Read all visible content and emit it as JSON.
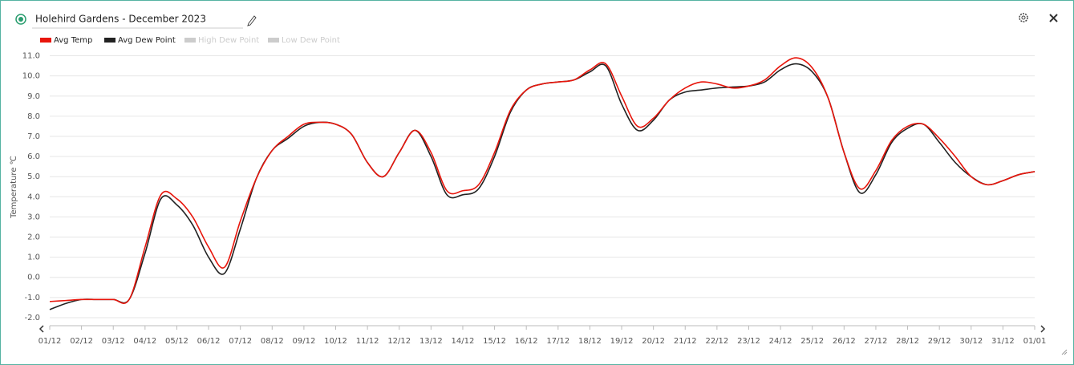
{
  "chart_data": {
    "type": "line",
    "title": "Holehird Gardens - December 2023",
    "y_label": "Temperature ℃",
    "categories": [
      "01/12",
      null,
      "02/12",
      null,
      "03/12",
      null,
      "04/12",
      null,
      "05/12",
      null,
      "06/12",
      null,
      "07/12",
      null,
      "08/12",
      null,
      "09/12",
      null,
      "10/12",
      null,
      "11/12",
      null,
      "12/12",
      null,
      "13/12",
      null,
      "14/12",
      null,
      "15/12",
      null,
      "16/12",
      null,
      "17/12",
      null,
      "18/12",
      null,
      "19/12",
      null,
      "20/12",
      null,
      "21/12",
      null,
      "22/12",
      null,
      "23/12",
      null,
      "24/12",
      null,
      "25/12",
      null,
      "26/12",
      null,
      "27/12",
      null,
      "28/12",
      null,
      "29/12",
      null,
      "30/12",
      null,
      "31/12",
      null,
      "01/01"
    ],
    "series": [
      {
        "name": "Avg Temp",
        "color": "#e8160c",
        "visible": true,
        "values": [
          -1.2,
          -1.15,
          -1.1,
          -1.1,
          -1.1,
          -1.1,
          1.5,
          4.1,
          3.9,
          3.0,
          1.5,
          0.5,
          2.8,
          4.9,
          6.3,
          7.0,
          7.6,
          7.7,
          7.6,
          7.1,
          5.7,
          5.0,
          6.2,
          7.3,
          6.2,
          4.3,
          4.3,
          4.6,
          6.2,
          8.3,
          9.3,
          9.6,
          9.7,
          9.8,
          10.3,
          10.6,
          9.0,
          7.5,
          7.9,
          8.8,
          9.4,
          9.7,
          9.6,
          9.4,
          9.5,
          9.8,
          10.5,
          10.9,
          10.4,
          8.9,
          6.2,
          4.4,
          5.3,
          6.8,
          7.5,
          7.6,
          6.9,
          6.0,
          5.0,
          4.6,
          4.8,
          5.1,
          5.25
        ]
      },
      {
        "name": "Avg Dew Point",
        "color": "#222222",
        "visible": true,
        "values": [
          -1.6,
          -1.3,
          -1.1,
          -1.1,
          -1.1,
          -1.1,
          1.2,
          3.9,
          3.6,
          2.6,
          1.0,
          0.2,
          2.4,
          4.9,
          6.3,
          6.9,
          7.5,
          7.7,
          7.6,
          7.1,
          5.7,
          5.0,
          6.2,
          7.3,
          6.0,
          4.1,
          4.1,
          4.4,
          6.0,
          8.2,
          9.3,
          9.6,
          9.7,
          9.8,
          10.2,
          10.5,
          8.6,
          7.3,
          7.8,
          8.8,
          9.2,
          9.3,
          9.4,
          9.45,
          9.5,
          9.7,
          10.3,
          10.6,
          10.2,
          8.9,
          6.2,
          4.2,
          5.1,
          6.7,
          7.4,
          7.6,
          6.7,
          5.7,
          5.0,
          4.6,
          4.8,
          5.1,
          5.25
        ]
      },
      {
        "name": "High Dew Point",
        "color": "#cccccc",
        "visible": false
      },
      {
        "name": "Low Dew Point",
        "color": "#cccccc",
        "visible": false
      }
    ],
    "ylim": [
      -2.4,
      11.3
    ],
    "yticks": [
      {
        "value": -2,
        "label": "-2.0"
      },
      {
        "value": -1,
        "label": "-1.0"
      },
      {
        "value": 0,
        "label": "0.0"
      },
      {
        "value": 1,
        "label": "1.0"
      },
      {
        "value": 2,
        "label": "2.0"
      },
      {
        "value": 3,
        "label": "3.0"
      },
      {
        "value": 4,
        "label": "4.0"
      },
      {
        "value": 5,
        "label": "5.0"
      },
      {
        "value": 6,
        "label": "6.0"
      },
      {
        "value": 7,
        "label": "7.0"
      },
      {
        "value": 8,
        "label": "8.0"
      },
      {
        "value": 9,
        "label": "9.0"
      },
      {
        "value": 10,
        "label": "10.0"
      },
      {
        "value": 11,
        "label": "11.0"
      }
    ],
    "grid": true
  }
}
